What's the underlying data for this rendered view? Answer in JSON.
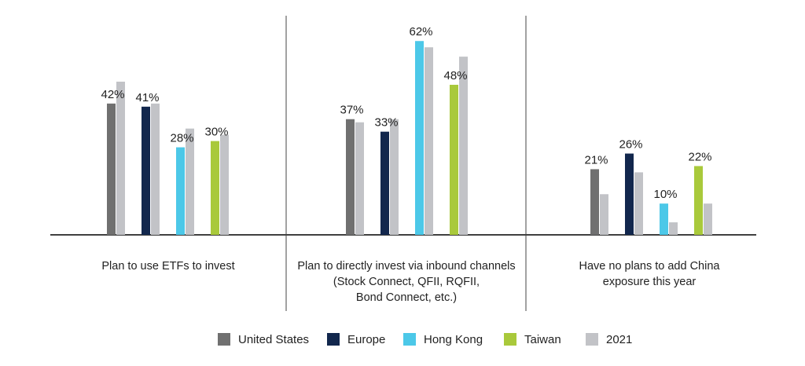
{
  "chart_data": {
    "type": "bar",
    "categories": [
      "Plan to use ETFs to invest",
      "Plan to directly invest via inbound channels\n(Stock Connect, QFII, RQFII,\nBond Connect, etc.)",
      "Have no plans to add China\nexposure this year"
    ],
    "groups": [
      {
        "label_lines": [
          "Plan to use ETFs to invest"
        ],
        "bars": [
          {
            "series": "United States",
            "value": 42,
            "label": "42%",
            "compare_2021": 49
          },
          {
            "series": "Europe",
            "value": 41,
            "label": "41%",
            "compare_2021": 42
          },
          {
            "series": "Hong Kong",
            "value": 28,
            "label": "28%",
            "compare_2021": 34
          },
          {
            "series": "Taiwan",
            "value": 30,
            "label": "30%",
            "compare_2021": 32
          }
        ]
      },
      {
        "label_lines": [
          "Plan to directly invest via inbound channels",
          "(Stock Connect, QFII, RQFII,",
          "Bond Connect, etc.)"
        ],
        "bars": [
          {
            "series": "United States",
            "value": 37,
            "label": "37%",
            "compare_2021": 36
          },
          {
            "series": "Europe",
            "value": 33,
            "label": "33%",
            "compare_2021": 37
          },
          {
            "series": "Hong Kong",
            "value": 62,
            "label": "62%",
            "compare_2021": 60
          },
          {
            "series": "Taiwan",
            "value": 48,
            "label": "48%",
            "compare_2021": 57
          }
        ]
      },
      {
        "label_lines": [
          "Have no plans to add China",
          "exposure this year"
        ],
        "bars": [
          {
            "series": "United States",
            "value": 21,
            "label": "21%",
            "compare_2021": 13
          },
          {
            "series": "Europe",
            "value": 26,
            "label": "26%",
            "compare_2021": 20
          },
          {
            "series": "Hong Kong",
            "value": 10,
            "label": "10%",
            "compare_2021": 4
          },
          {
            "series": "Taiwan",
            "value": 22,
            "label": "22%",
            "compare_2021": 10
          }
        ]
      }
    ],
    "series": [
      {
        "name": "United States",
        "color": "#707070"
      },
      {
        "name": "Europe",
        "color": "#12274d"
      },
      {
        "name": "Hong Kong",
        "color": "#4cc8e8"
      },
      {
        "name": "Taiwan",
        "color": "#a9c93b"
      },
      {
        "name": "2021",
        "color": "#c2c3c7"
      }
    ],
    "ylim": [
      0,
      68
    ],
    "legend_position": "bottom",
    "grid": false
  }
}
